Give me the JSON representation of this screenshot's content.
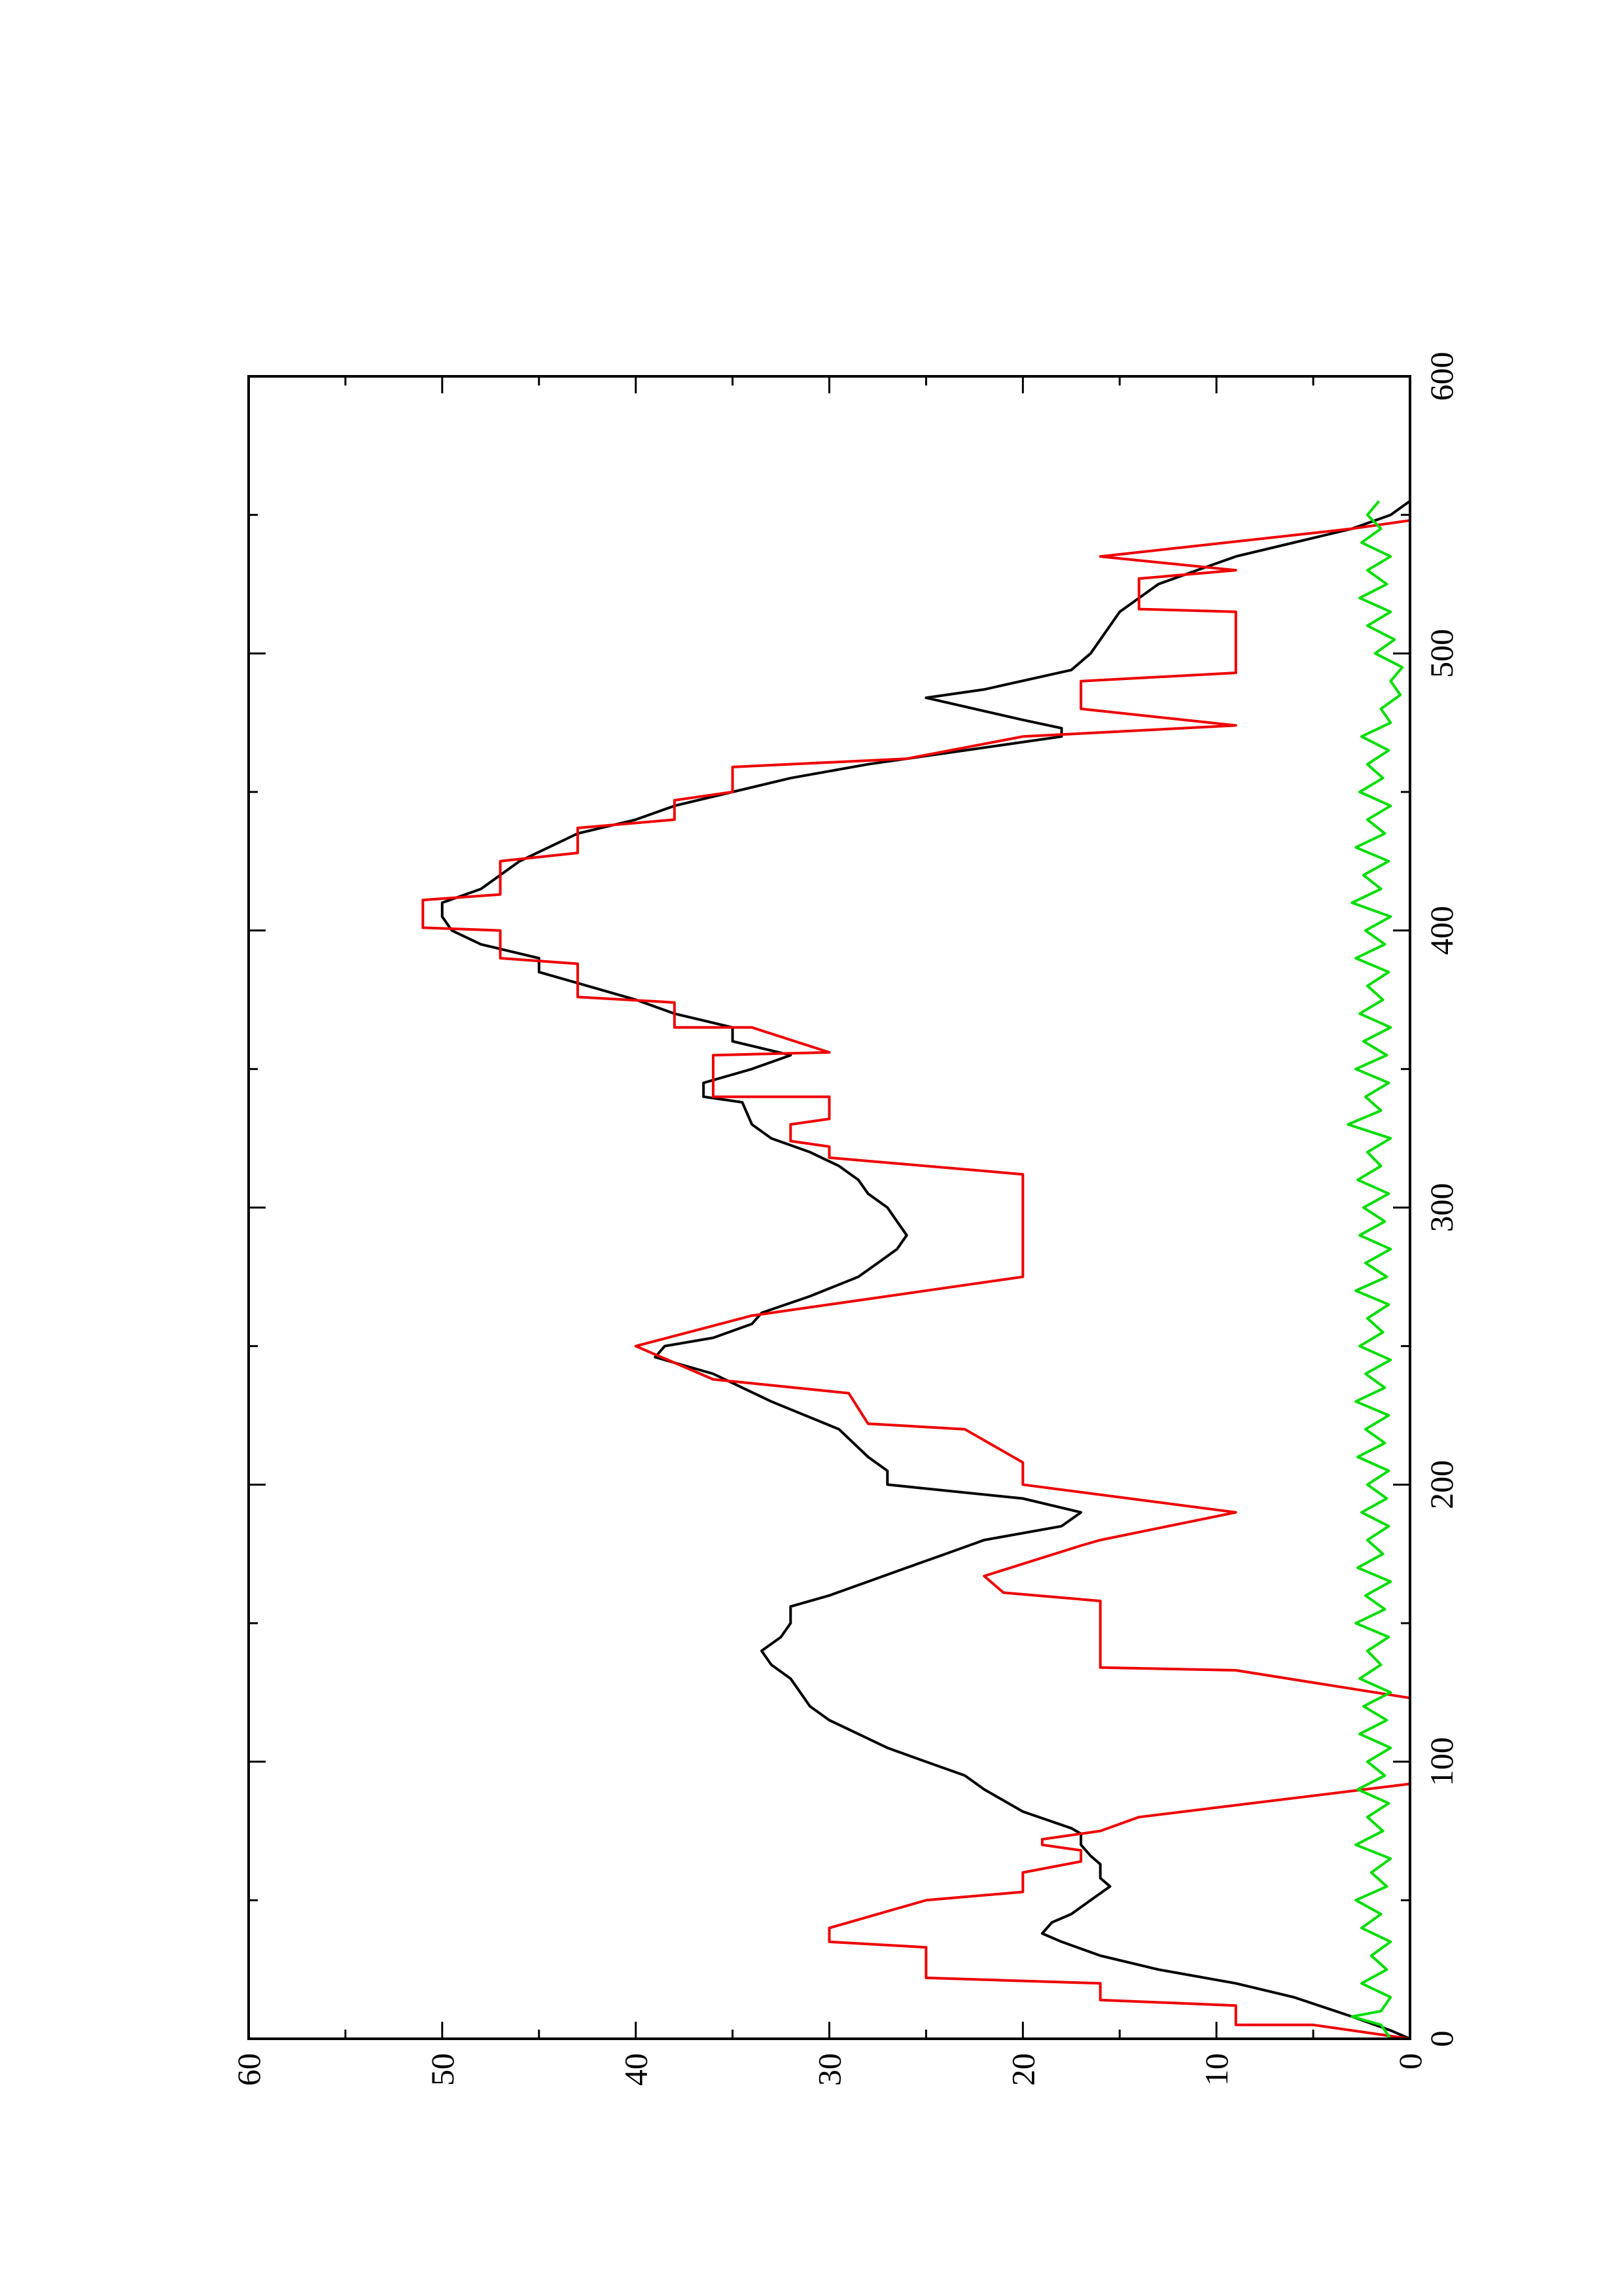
{
  "chart_data": {
    "type": "line",
    "orientation": "rotated 90 degrees counter-clockwise on the page",
    "title": "",
    "xlabel": "",
    "ylabel": "",
    "xlim": [
      0,
      600
    ],
    "ylim": [
      0,
      60
    ],
    "x_ticks": [
      "0",
      "100",
      "200",
      "300",
      "400",
      "500",
      "600"
    ],
    "y_ticks": [
      "0",
      "10",
      "20",
      "30",
      "40",
      "50",
      "60"
    ],
    "grid": false,
    "legend": "none",
    "series": [
      {
        "color": "#000000",
        "points": [
          [
            0,
            0
          ],
          [
            3,
            1
          ],
          [
            8,
            3
          ],
          [
            15,
            6
          ],
          [
            20,
            9
          ],
          [
            25,
            13
          ],
          [
            30,
            16
          ],
          [
            35,
            18
          ],
          [
            38,
            19
          ],
          [
            42,
            18.5
          ],
          [
            45,
            17.5
          ],
          [
            50,
            16.5
          ],
          [
            55,
            15.5
          ],
          [
            58,
            16
          ],
          [
            63,
            16
          ],
          [
            66,
            16.5
          ],
          [
            70,
            17
          ],
          [
            74,
            17
          ],
          [
            76,
            17.5
          ],
          [
            82,
            20
          ],
          [
            90,
            22
          ],
          [
            95,
            23
          ],
          [
            100,
            25
          ],
          [
            105,
            27
          ],
          [
            110,
            28.5
          ],
          [
            115,
            30
          ],
          [
            120,
            31
          ],
          [
            125,
            31.5
          ],
          [
            130,
            32
          ],
          [
            135,
            33
          ],
          [
            140,
            33.5
          ],
          [
            145,
            32.5
          ],
          [
            150,
            32
          ],
          [
            156,
            32
          ],
          [
            160,
            30
          ],
          [
            165,
            28
          ],
          [
            170,
            26
          ],
          [
            175,
            24
          ],
          [
            180,
            22
          ],
          [
            185,
            18
          ],
          [
            190,
            17
          ],
          [
            195,
            20
          ],
          [
            200,
            27
          ],
          [
            205,
            27
          ],
          [
            210,
            28
          ],
          [
            220,
            29.5
          ],
          [
            230,
            33
          ],
          [
            240,
            36
          ],
          [
            246,
            39
          ],
          [
            250,
            38.5
          ],
          [
            253,
            36
          ],
          [
            258,
            34
          ],
          [
            262,
            33.5
          ],
          [
            268,
            31
          ],
          [
            275,
            28.5
          ],
          [
            280,
            27.5
          ],
          [
            285,
            26.5
          ],
          [
            290,
            26
          ],
          [
            295,
            26.5
          ],
          [
            300,
            27
          ],
          [
            305,
            28
          ],
          [
            310,
            28.5
          ],
          [
            315,
            29.5
          ],
          [
            320,
            31
          ],
          [
            325,
            33
          ],
          [
            330,
            34
          ],
          [
            338,
            34.5
          ],
          [
            340,
            36.5
          ],
          [
            345,
            36.5
          ],
          [
            350,
            34
          ],
          [
            355,
            32
          ],
          [
            360,
            35
          ],
          [
            365,
            35
          ],
          [
            370,
            38
          ],
          [
            375,
            40
          ],
          [
            380,
            42.5
          ],
          [
            385,
            45
          ],
          [
            390,
            45
          ],
          [
            395,
            48
          ],
          [
            400,
            49.5
          ],
          [
            405,
            50
          ],
          [
            410,
            50
          ],
          [
            415,
            48
          ],
          [
            420,
            47
          ],
          [
            425,
            46
          ],
          [
            430,
            44.5
          ],
          [
            435,
            43
          ],
          [
            440,
            40
          ],
          [
            445,
            38
          ],
          [
            450,
            35
          ],
          [
            455,
            32
          ],
          [
            460,
            28
          ],
          [
            465,
            23
          ],
          [
            470,
            18
          ],
          [
            473,
            18
          ],
          [
            476,
            20
          ],
          [
            484,
            25
          ],
          [
            484,
            25
          ],
          [
            487,
            22
          ],
          [
            494,
            17.5
          ],
          [
            500,
            16.5
          ],
          [
            505,
            16
          ],
          [
            510,
            15.5
          ],
          [
            515,
            15
          ],
          [
            520,
            14
          ],
          [
            525,
            13
          ],
          [
            530,
            11
          ],
          [
            535,
            9
          ],
          [
            540,
            6
          ],
          [
            545,
            3
          ],
          [
            550,
            1
          ],
          [
            555,
            0
          ]
        ]
      },
      {
        "color": "#ee0000",
        "points": [
          [
            0,
            0
          ],
          [
            5,
            5
          ],
          [
            5,
            9
          ],
          [
            12,
            9
          ],
          [
            14,
            16
          ],
          [
            20,
            16
          ],
          [
            22,
            25
          ],
          [
            33,
            25
          ],
          [
            35,
            30
          ],
          [
            40,
            30
          ],
          [
            50,
            25
          ],
          [
            53,
            20
          ],
          [
            60,
            20
          ],
          [
            64,
            17
          ],
          [
            68,
            17
          ],
          [
            70,
            19
          ],
          [
            72,
            19
          ],
          [
            75,
            16
          ],
          [
            80,
            14
          ],
          [
            92,
            0
          ],
          [
            123,
            0
          ],
          [
            133,
            9
          ],
          [
            134,
            16
          ],
          [
            158,
            16
          ],
          [
            161,
            21
          ],
          [
            167,
            22
          ],
          [
            178,
            17
          ],
          [
            180,
            16
          ],
          [
            190,
            9
          ],
          [
            200,
            20
          ],
          [
            208,
            20
          ],
          [
            220,
            23
          ],
          [
            222,
            28
          ],
          [
            233,
            29
          ],
          [
            238,
            36
          ],
          [
            250,
            40
          ],
          [
            261,
            34
          ],
          [
            275,
            20
          ],
          [
            312,
            20
          ],
          [
            318,
            30
          ],
          [
            322,
            30
          ],
          [
            324,
            32
          ],
          [
            330,
            32
          ],
          [
            332,
            30
          ],
          [
            340,
            30
          ],
          [
            340,
            36
          ],
          [
            355,
            36
          ],
          [
            356,
            30
          ],
          [
            365,
            34
          ],
          [
            365,
            38
          ],
          [
            374,
            38
          ],
          [
            376,
            43
          ],
          [
            388,
            43
          ],
          [
            390,
            47
          ],
          [
            400,
            47
          ],
          [
            401,
            51
          ],
          [
            411,
            51
          ],
          [
            413,
            47
          ],
          [
            425,
            47
          ],
          [
            428,
            43
          ],
          [
            437,
            43
          ],
          [
            440,
            38
          ],
          [
            447,
            38
          ],
          [
            450,
            35
          ],
          [
            459,
            35
          ],
          [
            462,
            26
          ],
          [
            470,
            20
          ],
          [
            474,
            9
          ],
          [
            480,
            17
          ],
          [
            490,
            17
          ],
          [
            493,
            9
          ],
          [
            515,
            9
          ],
          [
            516,
            14
          ],
          [
            527,
            14
          ],
          [
            530,
            9
          ],
          [
            535,
            16
          ],
          [
            545,
            3
          ],
          [
            548,
            0
          ]
        ]
      },
      {
        "color": "#00dd00",
        "points": [
          [
            0,
            1
          ],
          [
            5,
            1.5
          ],
          [
            8,
            3
          ],
          [
            10,
            1.5
          ],
          [
            15,
            1
          ],
          [
            20,
            2.5
          ],
          [
            25,
            1.2
          ],
          [
            30,
            2
          ],
          [
            35,
            1
          ],
          [
            40,
            2.5
          ],
          [
            45,
            1.5
          ],
          [
            50,
            2.8
          ],
          [
            55,
            1.2
          ],
          [
            60,
            2
          ],
          [
            65,
            1
          ],
          [
            70,
            2.8
          ],
          [
            75,
            1.4
          ],
          [
            80,
            2.2
          ],
          [
            85,
            1.1
          ],
          [
            90,
            2.7
          ],
          [
            95,
            1.3
          ],
          [
            100,
            2.2
          ],
          [
            105,
            1
          ],
          [
            110,
            2.6
          ],
          [
            115,
            1.2
          ],
          [
            120,
            2.4
          ],
          [
            125,
            1
          ],
          [
            130,
            2.6
          ],
          [
            135,
            1.5
          ],
          [
            140,
            2.2
          ],
          [
            145,
            1.1
          ],
          [
            150,
            2.8
          ],
          [
            155,
            1.3
          ],
          [
            160,
            2.3
          ],
          [
            165,
            1
          ],
          [
            170,
            2.7
          ],
          [
            175,
            1.4
          ],
          [
            180,
            2.2
          ],
          [
            185,
            1.1
          ],
          [
            190,
            2.5
          ],
          [
            195,
            1.2
          ],
          [
            200,
            2.2
          ],
          [
            205,
            1.1
          ],
          [
            210,
            2.7
          ],
          [
            215,
            1.3
          ],
          [
            220,
            2.3
          ],
          [
            225,
            1.1
          ],
          [
            230,
            2.8
          ],
          [
            235,
            1.3
          ],
          [
            240,
            2.3
          ],
          [
            245,
            1
          ],
          [
            250,
            2.6
          ],
          [
            255,
            1.4
          ],
          [
            260,
            2.2
          ],
          [
            265,
            1.1
          ],
          [
            270,
            2.8
          ],
          [
            275,
            1.2
          ],
          [
            280,
            2.3
          ],
          [
            285,
            1
          ],
          [
            290,
            2.6
          ],
          [
            295,
            1.3
          ],
          [
            300,
            2.4
          ],
          [
            305,
            1.1
          ],
          [
            310,
            2.7
          ],
          [
            315,
            1.5
          ],
          [
            320,
            2.2
          ],
          [
            325,
            1
          ],
          [
            330,
            3.2
          ],
          [
            335,
            1.5
          ],
          [
            340,
            2.3
          ],
          [
            345,
            1.1
          ],
          [
            350,
            2.8
          ],
          [
            355,
            1.2
          ],
          [
            360,
            2.4
          ],
          [
            365,
            1
          ],
          [
            370,
            2.6
          ],
          [
            375,
            1.4
          ],
          [
            380,
            2.2
          ],
          [
            385,
            1.1
          ],
          [
            390,
            2.8
          ],
          [
            395,
            1.3
          ],
          [
            400,
            2.3
          ],
          [
            405,
            1
          ],
          [
            410,
            3
          ],
          [
            415,
            1.5
          ],
          [
            420,
            2.4
          ],
          [
            425,
            1.1
          ],
          [
            430,
            2.8
          ],
          [
            435,
            1.3
          ],
          [
            440,
            2.2
          ],
          [
            445,
            1
          ],
          [
            450,
            2.6
          ],
          [
            455,
            1.4
          ],
          [
            460,
            2.2
          ],
          [
            465,
            1.1
          ],
          [
            470,
            2.5
          ],
          [
            475,
            1
          ],
          [
            480,
            1.5
          ],
          [
            485,
            0.5
          ],
          [
            490,
            1
          ],
          [
            495,
            0.4
          ],
          [
            500,
            1.8
          ],
          [
            505,
            0.8
          ],
          [
            510,
            2.2
          ],
          [
            515,
            1
          ],
          [
            520,
            2.6
          ],
          [
            525,
            1.2
          ],
          [
            530,
            2.2
          ],
          [
            535,
            1
          ],
          [
            540,
            2.5
          ],
          [
            545,
            1.5
          ],
          [
            550,
            2.2
          ],
          [
            555,
            1.6
          ]
        ]
      }
    ]
  }
}
